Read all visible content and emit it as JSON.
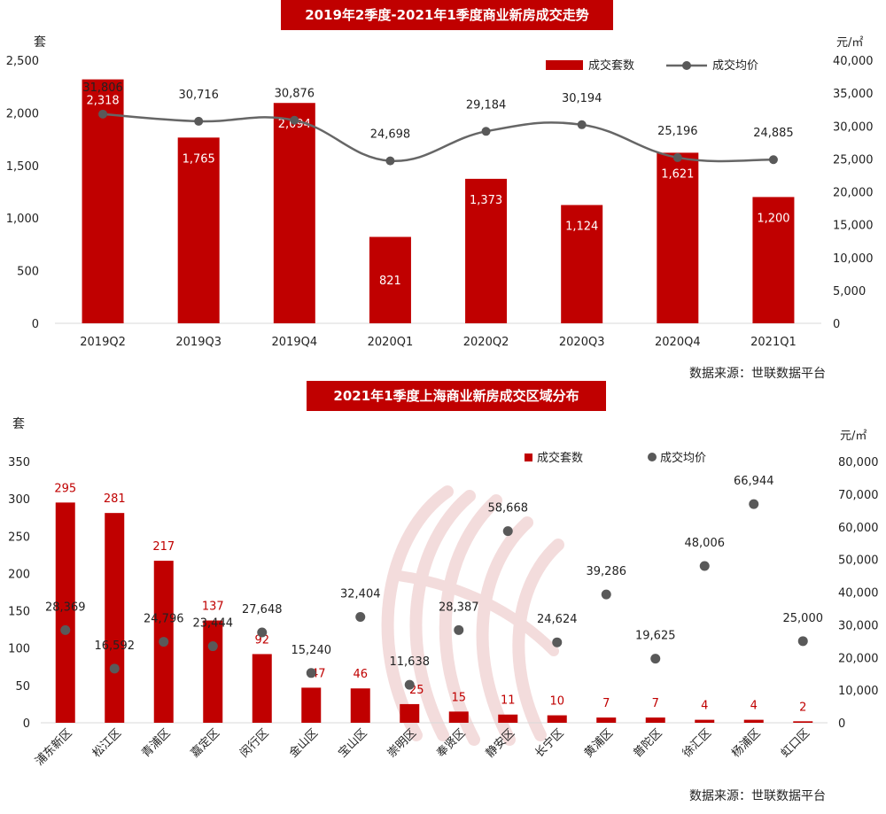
{
  "colors": {
    "bar": "#c00000",
    "line": "#666666",
    "dot": "#595959",
    "watermark": "#e6b3b3"
  },
  "source_label": "数据来源：世联数据平台",
  "chart_data": [
    {
      "type": "bar",
      "title": "2019年2季度-2021年1季度商业新房成交走势",
      "categories": [
        "2019Q2",
        "2019Q3",
        "2019Q4",
        "2020Q1",
        "2020Q2",
        "2020Q3",
        "2020Q4",
        "2021Q1"
      ],
      "series": [
        {
          "name": "成交套数",
          "type": "bar",
          "axis": "left",
          "values": [
            2318,
            1765,
            2094,
            821,
            1373,
            1124,
            1621,
            1200
          ],
          "labels": [
            "2,318",
            "1,765",
            "2,094",
            "821",
            "1,373",
            "1,124",
            "1,621",
            "1,200"
          ]
        },
        {
          "name": "成交均价",
          "type": "line",
          "axis": "right",
          "values": [
            31806,
            30716,
            30876,
            24698,
            29184,
            30194,
            25196,
            24885
          ],
          "labels": [
            "31,806",
            "30,716",
            "30,876",
            "24,698",
            "29,184",
            "30,194",
            "25,196",
            "24,885"
          ]
        }
      ],
      "left_axis": {
        "unit": "套",
        "ylim": [
          0,
          2500
        ],
        "ticks": [
          "0",
          "500",
          "1,000",
          "1,500",
          "2,000",
          "2,500"
        ]
      },
      "right_axis": {
        "unit": "元/㎡",
        "ylim": [
          0,
          40000
        ],
        "ticks": [
          "0",
          "5,000",
          "10,000",
          "15,000",
          "20,000",
          "25,000",
          "30,000",
          "35,000",
          "40,000"
        ]
      },
      "legend": "top-right",
      "grid": false
    },
    {
      "type": "bar",
      "title": "2021年1季度上海商业新房成交区域分布",
      "categories": [
        "浦东新区",
        "松江区",
        "青浦区",
        "嘉定区",
        "闵行区",
        "金山区",
        "宝山区",
        "崇明区",
        "奉贤区",
        "静安区",
        "长宁区",
        "黄浦区",
        "普陀区",
        "徐汇区",
        "杨浦区",
        "虹口区"
      ],
      "series": [
        {
          "name": "成交套数",
          "type": "bar",
          "axis": "left",
          "values": [
            295,
            281,
            217,
            137,
            92,
            47,
            46,
            25,
            15,
            11,
            10,
            7,
            7,
            4,
            4,
            2
          ],
          "labels": [
            "295",
            "281",
            "217",
            "137",
            "92",
            "47",
            "46",
            "25",
            "15",
            "11",
            "10",
            "7",
            "7",
            "4",
            "4",
            "2"
          ]
        },
        {
          "name": "成交均价",
          "type": "scatter",
          "axis": "right",
          "values": [
            28369,
            16592,
            24796,
            23444,
            27648,
            15240,
            32404,
            11638,
            28387,
            58668,
            24624,
            39286,
            19625,
            48006,
            66944,
            25000
          ],
          "labels": [
            "28,369",
            "16,592",
            "24,796",
            "23,444",
            "27,648",
            "15,240",
            "32,404",
            "11,638",
            "28,387",
            "58,668",
            "24,624",
            "39,286",
            "19,625",
            "48,006",
            "66,944",
            "25,000"
          ]
        }
      ],
      "left_axis": {
        "unit": "套",
        "ylim": [
          0,
          350
        ],
        "ticks": [
          "0",
          "50",
          "100",
          "150",
          "200",
          "250",
          "300",
          "350"
        ]
      },
      "right_axis": {
        "unit": "元/㎡",
        "ylim": [
          0,
          80000
        ],
        "ticks": [
          "0",
          "10,000",
          "20,000",
          "30,000",
          "40,000",
          "50,000",
          "60,000",
          "70,000",
          "80,000"
        ]
      },
      "legend": "top-right",
      "grid": false
    }
  ]
}
